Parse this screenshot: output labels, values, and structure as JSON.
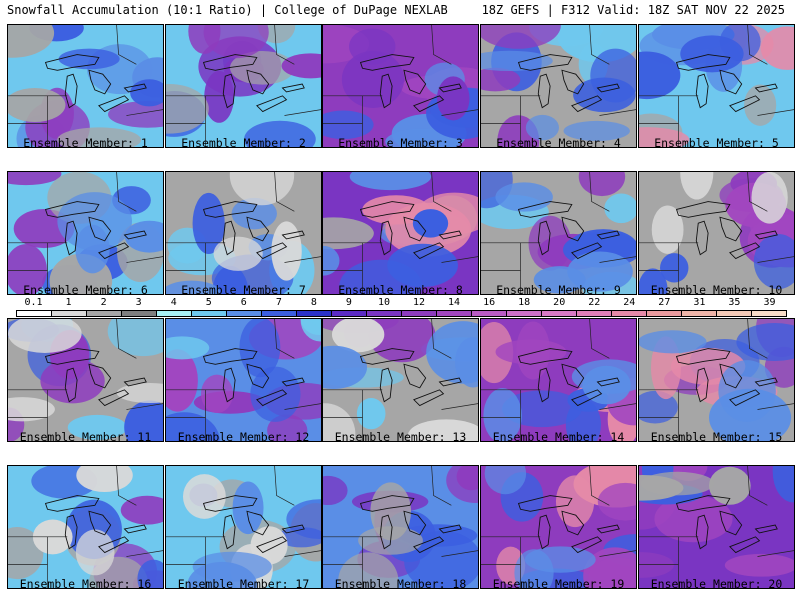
{
  "header": {
    "title_left": "Snowfall Accumulation (10:1 Ratio) | College of DuPage NEXLAB",
    "title_right": "18Z GEFS | F312 Valid: 18Z SAT NOV 22 2025"
  },
  "legend": {
    "labels": [
      "0.1",
      "1",
      "2",
      "3",
      "4",
      "5",
      "6",
      "7",
      "8",
      "9",
      "10",
      "12",
      "14",
      "16",
      "18",
      "20",
      "22",
      "24",
      "27",
      "31",
      "35",
      "39"
    ],
    "colors": [
      "#ffffff",
      "#d9d9d9",
      "#a6a6a6",
      "#7f7f7f",
      "#a8f0f5",
      "#6fc8ee",
      "#5a8ee6",
      "#3c5fe0",
      "#2a32c8",
      "#5b2bc4",
      "#7a35c2",
      "#8e3cbe",
      "#a146c0",
      "#b95cc4",
      "#cc6fc8",
      "#d87ac6",
      "#e07fb8",
      "#e58aa8",
      "#e99a9e",
      "#eeb4a8",
      "#f3c9b6",
      "#f8dcc8"
    ]
  },
  "members": [
    {
      "label": "Ensemble Member: 1",
      "base": "#6fc8ee",
      "blobs": [
        "#5a8ee6",
        "#8e3cbe",
        "#3c5fe0",
        "#a6a6a6"
      ]
    },
    {
      "label": "Ensemble Member: 2",
      "base": "#6fc8ee",
      "blobs": [
        "#3c5fe0",
        "#7a35c2",
        "#a6a6a6",
        "#8e3cbe"
      ]
    },
    {
      "label": "Ensemble Member: 3",
      "base": "#8e3cbe",
      "blobs": [
        "#a146c0",
        "#5a8ee6",
        "#3c5fe0",
        "#7a35c2"
      ]
    },
    {
      "label": "Ensemble Member: 4",
      "base": "#a6a6a6",
      "blobs": [
        "#6fc8ee",
        "#3c5fe0",
        "#8e3cbe",
        "#5a8ee6"
      ]
    },
    {
      "label": "Ensemble Member: 5",
      "base": "#6fc8ee",
      "blobs": [
        "#a6a6a6",
        "#e58aa8",
        "#5a8ee6",
        "#3c5fe0"
      ]
    },
    {
      "label": "Ensemble Member: 6",
      "base": "#6fc8ee",
      "blobs": [
        "#3c5fe0",
        "#8e3cbe",
        "#a6a6a6",
        "#5a8ee6"
      ]
    },
    {
      "label": "Ensemble Member: 7",
      "base": "#a6a6a6",
      "blobs": [
        "#6fc8ee",
        "#3c5fe0",
        "#5a8ee6",
        "#d9d9d9"
      ]
    },
    {
      "label": "Ensemble Member: 8",
      "base": "#7a35c2",
      "blobs": [
        "#a6a6a6",
        "#5a8ee6",
        "#e58aa8",
        "#3c5fe0"
      ]
    },
    {
      "label": "Ensemble Member: 9",
      "base": "#a6a6a6",
      "blobs": [
        "#6fc8ee",
        "#8e3cbe",
        "#3c5fe0",
        "#5a8ee6"
      ]
    },
    {
      "label": "Ensemble Member: 10",
      "base": "#a6a6a6",
      "blobs": [
        "#8e3cbe",
        "#a146c0",
        "#3c5fe0",
        "#d9d9d9"
      ]
    },
    {
      "label": "Ensemble Member: 11",
      "base": "#a6a6a6",
      "blobs": [
        "#6fc8ee",
        "#3c5fe0",
        "#8e3cbe",
        "#d9d9d9"
      ]
    },
    {
      "label": "Ensemble Member: 12",
      "base": "#5a8ee6",
      "blobs": [
        "#8e3cbe",
        "#a146c0",
        "#3c5fe0",
        "#6fc8ee"
      ]
    },
    {
      "label": "Ensemble Member: 13",
      "base": "#a6a6a6",
      "blobs": [
        "#6fc8ee",
        "#8e3cbe",
        "#d9d9d9",
        "#5a8ee6"
      ]
    },
    {
      "label": "Ensemble Member: 14",
      "base": "#8e3cbe",
      "blobs": [
        "#e58aa8",
        "#3c5fe0",
        "#a146c0",
        "#5a8ee6"
      ]
    },
    {
      "label": "Ensemble Member: 15",
      "base": "#a6a6a6",
      "blobs": [
        "#8e3cbe",
        "#3c5fe0",
        "#e58aa8",
        "#5a8ee6"
      ]
    },
    {
      "label": "Ensemble Member: 16",
      "base": "#6fc8ee",
      "blobs": [
        "#8e3cbe",
        "#a6a6a6",
        "#3c5fe0",
        "#d9d9d9"
      ]
    },
    {
      "label": "Ensemble Member: 17",
      "base": "#6fc8ee",
      "blobs": [
        "#a6a6a6",
        "#3c5fe0",
        "#d9d9d9",
        "#5a8ee6"
      ]
    },
    {
      "label": "Ensemble Member: 18",
      "base": "#5a8ee6",
      "blobs": [
        "#8e3cbe",
        "#7a35c2",
        "#3c5fe0",
        "#a6a6a6"
      ]
    },
    {
      "label": "Ensemble Member: 19",
      "base": "#8e3cbe",
      "blobs": [
        "#3c5fe0",
        "#e58aa8",
        "#a146c0",
        "#5a8ee6"
      ]
    },
    {
      "label": "Ensemble Member: 20",
      "base": "#7a35c2",
      "blobs": [
        "#8e3cbe",
        "#a146c0",
        "#3c5fe0",
        "#a6a6a6"
      ]
    }
  ]
}
